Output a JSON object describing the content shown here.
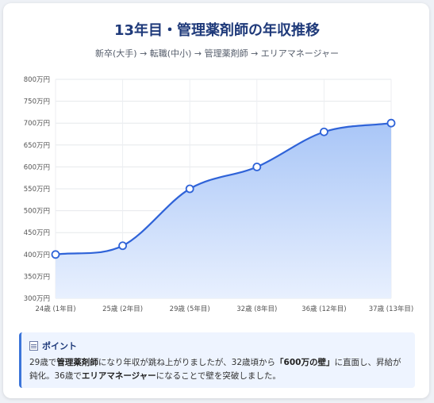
{
  "title": "13年目・管理薬剤師の年収推移",
  "subtitle": "新卒(大手) → 転職(中小) → 管理薬剤師 → エリアマネージャー",
  "chart_data": {
    "type": "area",
    "categories": [
      "24歳 (1年目)",
      "25歳 (2年目)",
      "29歳 (5年目)",
      "32歳 (8年目)",
      "36歳 (12年目)",
      "37歳 (13年目)"
    ],
    "values": [
      400,
      420,
      550,
      600,
      680,
      700
    ],
    "ylim": [
      300,
      800
    ],
    "yticks": [
      "300万円",
      "350万円",
      "400万円",
      "450万円",
      "500万円",
      "550万円",
      "600万円",
      "650万円",
      "700万円",
      "750万円",
      "800万円"
    ],
    "grid": true,
    "colors": {
      "line": "#2f63d8",
      "fill_top": "#a9c6f7",
      "fill_bottom": "#e8f0fe"
    }
  },
  "point": {
    "icon": "memo-icon",
    "heading": "ポイント",
    "t1": "29歳で",
    "b1": "管理薬剤師",
    "t2": "になり年収が跳ね上がりましたが、32歳頃から",
    "b2": "「600万の壁」",
    "t3": "に直面し、昇給が鈍化。36歳で",
    "b3": "エリアマネージャー",
    "t4": "になることで壁を突破しました。"
  }
}
